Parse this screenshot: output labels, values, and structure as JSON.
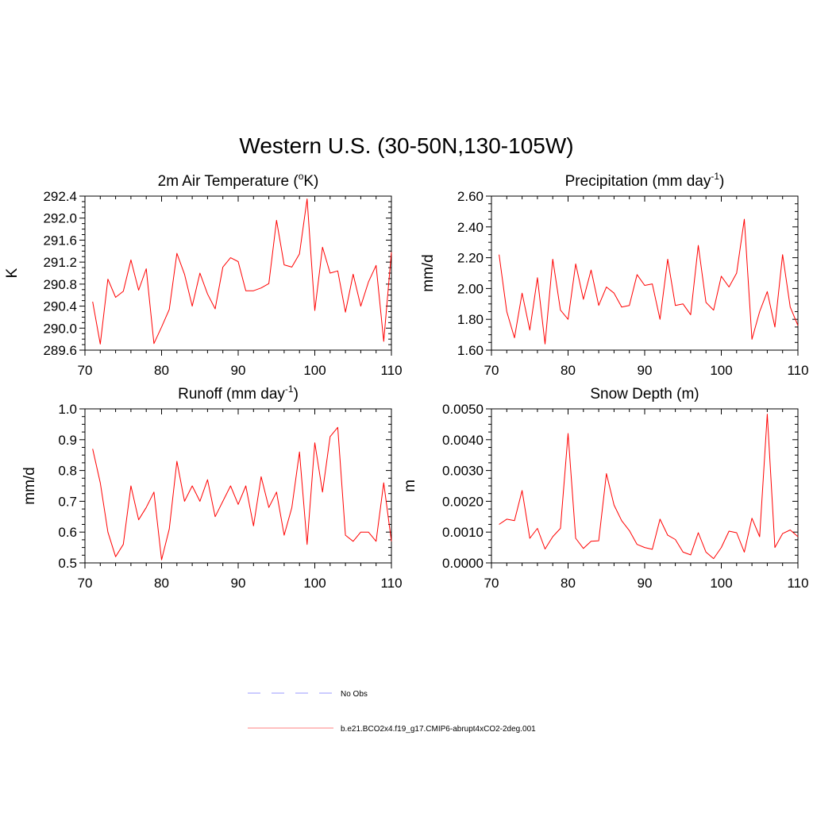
{
  "figure": {
    "title": "Western U.S. (30-50N,130-105W)"
  },
  "legend": {
    "entries": [
      {
        "label": "No Obs",
        "color": "#9999ff",
        "style": "dashed"
      },
      {
        "label": "b.e21.BCO2x4.f19_g17.CMIP6-abrupt4xCO2-2deg.001",
        "color": "#ff8080",
        "style": "solid"
      }
    ]
  },
  "chart_data": [
    {
      "type": "line",
      "title": "2m Air Temperature (",
      "title_sup": "o",
      "title_after": "K)",
      "ylabel": "K",
      "xlim": [
        70,
        110
      ],
      "ylim": [
        289.6,
        292.4
      ],
      "xticks": [
        70,
        80,
        90,
        100,
        110
      ],
      "yticks": [
        289.6,
        290.0,
        290.4,
        290.8,
        291.2,
        291.6,
        292.0,
        292.4
      ],
      "ytick_labels": [
        "289.6",
        "290.0",
        "290.4",
        "290.8",
        "291.2",
        "291.6",
        "292.0",
        "292.4"
      ],
      "xtick_labels": [
        "70",
        "80",
        "90",
        "100",
        "110"
      ],
      "series": [
        {
          "color": "#ff0000",
          "x": [
            71,
            72,
            73,
            74,
            75,
            76,
            77,
            78,
            79,
            80,
            81,
            82,
            83,
            84,
            85,
            86,
            87,
            88,
            89,
            90,
            91,
            92,
            93,
            94,
            95,
            96,
            97,
            98,
            99,
            100,
            101,
            102,
            103,
            104,
            105,
            106,
            107,
            108,
            109,
            110
          ],
          "y": [
            290.48,
            289.71,
            290.89,
            290.56,
            290.67,
            291.24,
            290.69,
            291.08,
            289.72,
            290.02,
            290.34,
            291.36,
            290.98,
            290.4,
            291.0,
            290.62,
            290.35,
            291.11,
            291.28,
            291.21,
            290.68,
            290.68,
            290.73,
            290.81,
            291.96,
            291.15,
            291.11,
            291.35,
            292.35,
            290.32,
            291.47,
            291.0,
            291.04,
            290.29,
            290.98,
            290.4,
            290.84,
            291.14,
            289.76,
            291.38
          ]
        }
      ]
    },
    {
      "type": "line",
      "title": "Precipitation (mm day",
      "title_sup": "-1",
      "title_after": ")",
      "ylabel": "mm/d",
      "xlim": [
        70,
        110
      ],
      "ylim": [
        1.6,
        2.6
      ],
      "xticks": [
        70,
        80,
        90,
        100,
        110
      ],
      "yticks": [
        1.6,
        1.8,
        2.0,
        2.2,
        2.4,
        2.6
      ],
      "ytick_labels": [
        "1.60",
        "1.80",
        "2.00",
        "2.20",
        "2.40",
        "2.60"
      ],
      "xtick_labels": [
        "70",
        "80",
        "90",
        "100",
        "110"
      ],
      "series": [
        {
          "color": "#ff0000",
          "x": [
            71,
            72,
            73,
            74,
            75,
            76,
            77,
            78,
            79,
            80,
            81,
            82,
            83,
            84,
            85,
            86,
            87,
            88,
            89,
            90,
            91,
            92,
            93,
            94,
            95,
            96,
            97,
            98,
            99,
            100,
            101,
            102,
            103,
            104,
            105,
            106,
            107,
            108,
            109,
            110
          ],
          "y": [
            2.22,
            1.85,
            1.68,
            1.97,
            1.73,
            2.07,
            1.64,
            2.19,
            1.86,
            1.8,
            2.16,
            1.93,
            2.12,
            1.89,
            2.01,
            1.97,
            1.88,
            1.89,
            2.09,
            2.02,
            2.03,
            1.8,
            2.19,
            1.89,
            1.9,
            1.83,
            2.28,
            1.91,
            1.86,
            2.08,
            2.01,
            2.1,
            2.45,
            1.67,
            1.85,
            1.98,
            1.75,
            2.22,
            1.88,
            1.76
          ]
        }
      ]
    },
    {
      "type": "line",
      "title": "Runoff (mm day",
      "title_sup": "-1",
      "title_after": ")",
      "ylabel": "mm/d",
      "xlim": [
        70,
        110
      ],
      "ylim": [
        0.5,
        1.0
      ],
      "xticks": [
        70,
        80,
        90,
        100,
        110
      ],
      "yticks": [
        0.5,
        0.6,
        0.7,
        0.8,
        0.9,
        1.0
      ],
      "ytick_labels": [
        "0.5",
        "0.6",
        "0.7",
        "0.8",
        "0.9",
        "1.0"
      ],
      "xtick_labels": [
        "70",
        "80",
        "90",
        "100",
        "110"
      ],
      "series": [
        {
          "color": "#ff0000",
          "x": [
            71,
            72,
            73,
            74,
            75,
            76,
            77,
            78,
            79,
            80,
            81,
            82,
            83,
            84,
            85,
            86,
            87,
            88,
            89,
            90,
            91,
            92,
            93,
            94,
            95,
            96,
            97,
            98,
            99,
            100,
            101,
            102,
            103,
            104,
            105,
            106,
            107,
            108,
            109,
            110
          ],
          "y": [
            0.87,
            0.76,
            0.6,
            0.52,
            0.56,
            0.75,
            0.64,
            0.68,
            0.73,
            0.51,
            0.61,
            0.83,
            0.7,
            0.75,
            0.7,
            0.77,
            0.65,
            0.7,
            0.75,
            0.69,
            0.75,
            0.62,
            0.78,
            0.68,
            0.73,
            0.59,
            0.68,
            0.86,
            0.56,
            0.89,
            0.73,
            0.91,
            0.94,
            0.59,
            0.57,
            0.6,
            0.6,
            0.57,
            0.76,
            0.57
          ]
        }
      ]
    },
    {
      "type": "line",
      "title": "Snow Depth (m)",
      "title_sup": "",
      "title_after": "",
      "ylabel": "m",
      "xlim": [
        70,
        110
      ],
      "ylim": [
        0.0,
        0.005
      ],
      "xticks": [
        70,
        80,
        90,
        100,
        110
      ],
      "yticks": [
        0.0,
        0.001,
        0.002,
        0.003,
        0.004,
        0.005
      ],
      "ytick_labels": [
        "0.0000",
        "0.0010",
        "0.0020",
        "0.0030",
        "0.0040",
        "0.0050"
      ],
      "xtick_labels": [
        "70",
        "80",
        "90",
        "100",
        "110"
      ],
      "series": [
        {
          "color": "#ff0000",
          "x": [
            71,
            72,
            73,
            74,
            75,
            76,
            77,
            78,
            79,
            80,
            81,
            82,
            83,
            84,
            85,
            86,
            87,
            88,
            89,
            90,
            91,
            92,
            93,
            94,
            95,
            96,
            97,
            98,
            99,
            100,
            101,
            102,
            103,
            104,
            105,
            106,
            107,
            108,
            109,
            110
          ],
          "y": [
            0.00125,
            0.00142,
            0.00137,
            0.00235,
            0.0008,
            0.00112,
            0.00045,
            0.00085,
            0.00112,
            0.0042,
            0.0008,
            0.00047,
            0.0007,
            0.00072,
            0.0029,
            0.00188,
            0.00137,
            0.00105,
            0.0006,
            0.0005,
            0.00044,
            0.00142,
            0.0009,
            0.00076,
            0.00035,
            0.00026,
            0.00098,
            0.00035,
            0.00014,
            0.0005,
            0.00103,
            0.00098,
            0.00035,
            0.00145,
            0.00085,
            0.00483,
            0.0005,
            0.00095,
            0.00107,
            0.00085
          ]
        }
      ]
    }
  ]
}
